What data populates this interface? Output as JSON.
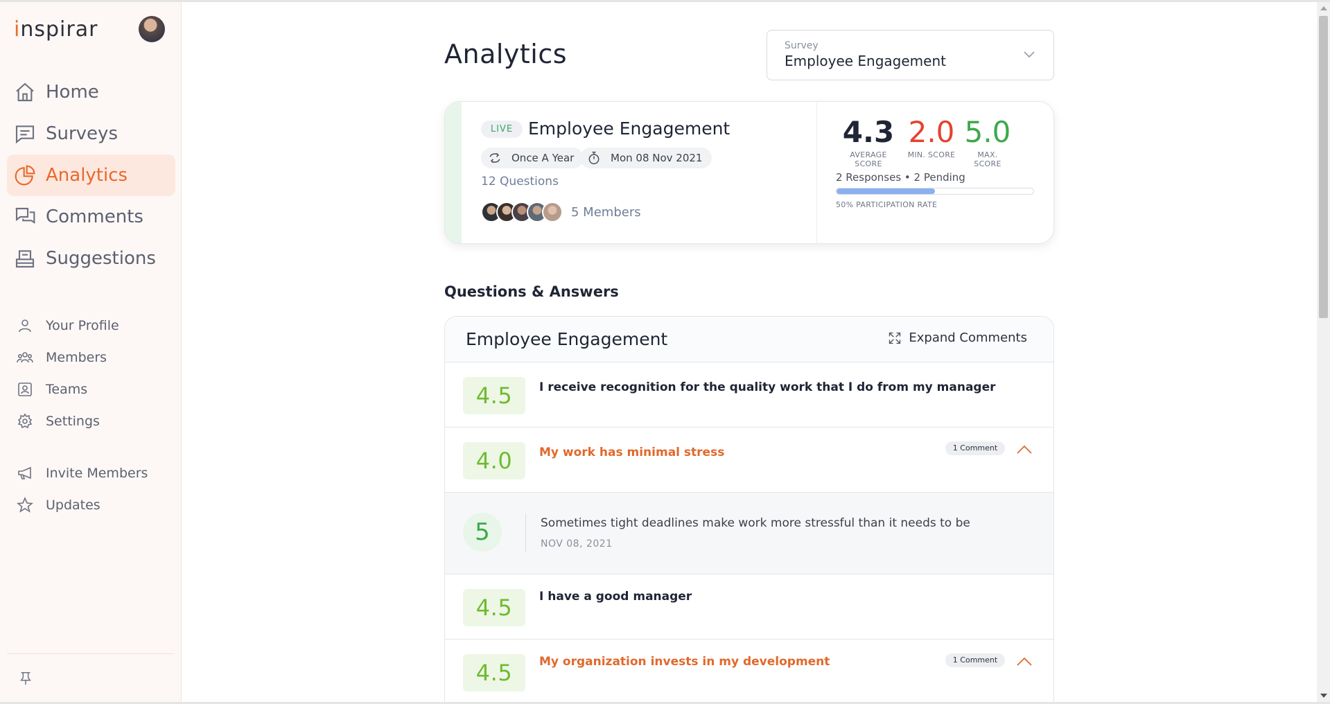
{
  "brand": {
    "logo_text": "inspirar",
    "accent": "#e8692c"
  },
  "sidebar": {
    "primary": [
      {
        "label": "Home",
        "icon": "home-icon",
        "active": false
      },
      {
        "label": "Surveys",
        "icon": "chat-icon",
        "active": false
      },
      {
        "label": "Analytics",
        "icon": "pie-chart-icon",
        "active": true
      },
      {
        "label": "Comments",
        "icon": "comments-icon",
        "active": false
      },
      {
        "label": "Suggestions",
        "icon": "inbox-icon",
        "active": false
      }
    ],
    "secondary": [
      {
        "label": "Your Profile",
        "icon": "user-icon"
      },
      {
        "label": "Members",
        "icon": "users-icon"
      },
      {
        "label": "Teams",
        "icon": "team-icon"
      },
      {
        "label": "Settings",
        "icon": "gear-icon"
      }
    ],
    "tertiary": [
      {
        "label": "Invite Members",
        "icon": "megaphone-icon"
      },
      {
        "label": "Updates",
        "icon": "star-icon"
      }
    ]
  },
  "page": {
    "title": "Analytics"
  },
  "survey_select": {
    "label": "Survey",
    "value": "Employee Engagement"
  },
  "summary": {
    "status": "LIVE",
    "title": "Employee Engagement",
    "frequency": "Once A Year",
    "date": "Mon 08 Nov 2021",
    "questions": "12 Questions",
    "members": "5 Members",
    "scores": {
      "average": {
        "value": "4.3",
        "label": "AVERAGE SCORE"
      },
      "min": {
        "value": "2.0",
        "label": "MIN. SCORE"
      },
      "max": {
        "value": "5.0",
        "label": "MAX. SCORE"
      }
    },
    "responses": "2 Responses • 2 Pending",
    "participation_rate": 0.5,
    "participation_label": "50% PARTICIPATION RATE"
  },
  "qa": {
    "section_title": "Questions & Answers",
    "panel_title": "Employee Engagement",
    "expand_label": "Expand Comments",
    "rows": [
      {
        "score": "4.5",
        "question": "I receive recognition for the quality work that I do from my manager"
      },
      {
        "score": "4.0",
        "question": "My work has minimal stress",
        "comments": "1 Comment"
      },
      {
        "score": "4.5",
        "question": "I have a good manager"
      },
      {
        "score": "4.5",
        "question": "My organization invests in my development",
        "comments": "1 Comment"
      }
    ],
    "comment": {
      "score": "5",
      "text": "Sometimes tight deadlines make work more stressful than it needs to be",
      "date": "NOV 08, 2021"
    }
  }
}
